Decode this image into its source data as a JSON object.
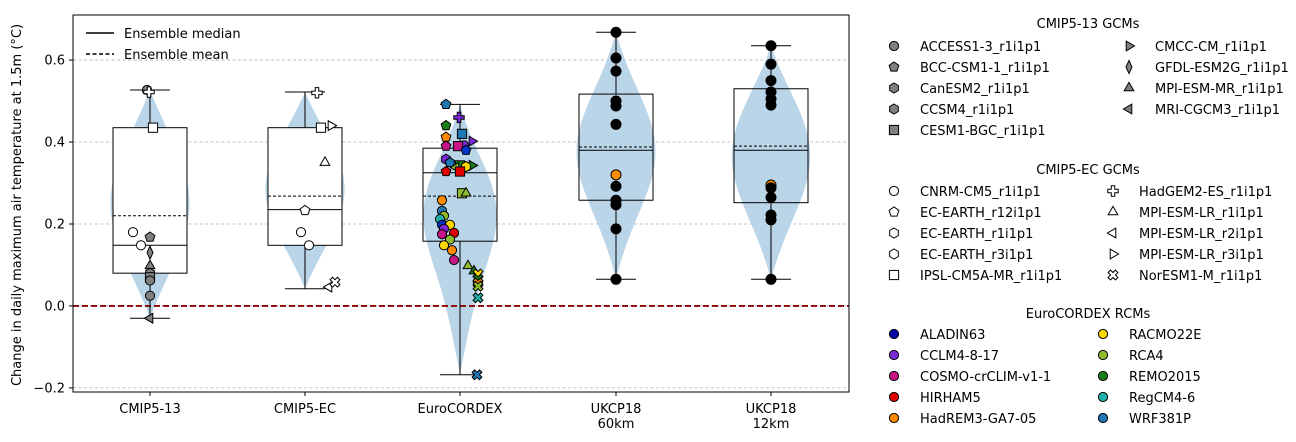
{
  "chart_data": {
    "type": "violin-box-scatter",
    "ylabel": "Change in daily maximum air temperature at 1.5m (°C)",
    "ylim": [
      -0.21,
      0.71
    ],
    "yticks": [
      "−0.2",
      "0.0",
      "0.2",
      "0.4",
      "0.6"
    ],
    "ytick_values": [
      -0.2,
      0.0,
      0.2,
      0.4,
      0.6
    ],
    "grid": "horizontal dashed",
    "zero_line_color": "#8b0000",
    "violin_color": "#bad5e8",
    "categories": [
      "CMIP5-13",
      "CMIP5-EC",
      "EuroCORDEX",
      "UKCP18\n60km",
      "UKCP18\n12km"
    ],
    "stats": [
      {
        "min": -0.03,
        "q1": 0.08,
        "median": 0.148,
        "mean": 0.22,
        "q3": 0.435,
        "max": 0.527
      },
      {
        "min": 0.042,
        "q1": 0.148,
        "median": 0.235,
        "mean": 0.268,
        "q3": 0.435,
        "max": 0.522
      },
      {
        "min": -0.168,
        "q1": 0.158,
        "median": 0.325,
        "mean": 0.268,
        "q3": 0.385,
        "max": 0.492
      },
      {
        "min": 0.065,
        "q1": 0.258,
        "median": 0.38,
        "mean": 0.388,
        "q3": 0.517,
        "max": 0.668
      },
      {
        "min": 0.065,
        "q1": 0.252,
        "median": 0.38,
        "mean": 0.39,
        "q3": 0.53,
        "max": 0.635
      }
    ],
    "series": [
      {
        "group": "CMIP5-13",
        "x": 0,
        "points": [
          {
            "marker": "circle",
            "fill": "#808080",
            "y": 0.527,
            "dx": -3
          },
          {
            "marker": "pentagon",
            "fill": "#808080",
            "y": 0.168,
            "dx": 0
          },
          {
            "marker": "diamond",
            "fill": "#808080",
            "y": 0.13,
            "dx": 0
          },
          {
            "marker": "triangle-up",
            "fill": "#808080",
            "y": 0.098,
            "dx": 0
          },
          {
            "marker": "hexagon",
            "fill": "#808080",
            "y": 0.08,
            "dx": 0
          },
          {
            "marker": "square",
            "fill": "#808080",
            "y": 0.07,
            "dx": 0
          },
          {
            "marker": "circle",
            "fill": "#808080",
            "y": 0.062,
            "dx": 0
          },
          {
            "marker": "circle",
            "fill": "#808080",
            "y": 0.025,
            "dx": 0
          },
          {
            "marker": "triangle-left",
            "fill": "#808080",
            "y": -0.03,
            "dx": 0
          },
          {
            "marker": "circle",
            "fill": "#ffffff",
            "y": 0.18,
            "dx": -17
          },
          {
            "marker": "circle",
            "fill": "#ffffff",
            "y": 0.148,
            "dx": -9
          },
          {
            "marker": "plus",
            "fill": "#ffffff",
            "y": 0.522,
            "dx": -1
          },
          {
            "marker": "square",
            "fill": "#ffffff",
            "y": 0.435,
            "dx": 3
          }
        ]
      },
      {
        "group": "CMIP5-EC",
        "x": 1,
        "points": [
          {
            "marker": "plus",
            "fill": "#ffffff",
            "y": 0.52,
            "dx": 12
          },
          {
            "marker": "square",
            "fill": "#ffffff",
            "y": 0.435,
            "dx": 16
          },
          {
            "marker": "triangle-right",
            "fill": "#ffffff",
            "y": 0.44,
            "dx": 26
          },
          {
            "marker": "triangle-up",
            "fill": "#ffffff",
            "y": 0.35,
            "dx": 20
          },
          {
            "marker": "pentagon",
            "fill": "#ffffff",
            "y": 0.233,
            "dx": 0
          },
          {
            "marker": "circle",
            "fill": "#ffffff",
            "y": 0.18,
            "dx": -4
          },
          {
            "marker": "circle",
            "fill": "#ffffff",
            "y": 0.148,
            "dx": 4
          },
          {
            "marker": "triangle-left",
            "fill": "#ffffff",
            "y": 0.046,
            "dx": 24
          },
          {
            "marker": "cross",
            "fill": "#ffffff",
            "y": 0.058,
            "dx": 30
          }
        ]
      },
      {
        "group": "EuroCORDEX",
        "x": 2,
        "points": [
          {
            "marker": "pentagon",
            "fill": "#1f77b4",
            "y": 0.492,
            "dx": -14
          },
          {
            "marker": "plus",
            "fill": "#7b2ad6",
            "y": 0.46,
            "dx": -1
          },
          {
            "marker": "square",
            "fill": "#1f77b4",
            "y": 0.42,
            "dx": 2
          },
          {
            "marker": "pentagon",
            "fill": "#ff8c00",
            "y": 0.412,
            "dx": -14
          },
          {
            "marker": "triangle-right",
            "fill": "#7b2ad6",
            "y": 0.402,
            "dx": 12
          },
          {
            "marker": "circle",
            "fill": "#7b2ad6",
            "y": 0.392,
            "dx": 4
          },
          {
            "marker": "pentagon",
            "fill": "#c71585",
            "y": 0.39,
            "dx": -14
          },
          {
            "marker": "square",
            "fill": "#c71585",
            "y": 0.39,
            "dx": -2
          },
          {
            "marker": "pentagon",
            "fill": "#0033cc",
            "y": 0.38,
            "dx": 6
          },
          {
            "marker": "pentagon",
            "fill": "#1a7f1a",
            "y": 0.44,
            "dx": -14
          },
          {
            "marker": "hexagon",
            "fill": "#7b2ad6",
            "y": 0.358,
            "dx": -14
          },
          {
            "marker": "pentagon",
            "fill": "#1f77b4",
            "y": 0.35,
            "dx": -10
          },
          {
            "marker": "triangle-right",
            "fill": "#1a7f1a",
            "y": 0.343,
            "dx": 12
          },
          {
            "marker": "square",
            "fill": "#1a7f1a",
            "y": 0.343,
            "dx": 0
          },
          {
            "marker": "triangle-left",
            "fill": "#8fbc2f",
            "y": 0.338,
            "dx": -4
          },
          {
            "marker": "hexagon",
            "fill": "#ffd700",
            "y": 0.34,
            "dx": 6
          },
          {
            "marker": "pentagon",
            "fill": "#e00000",
            "y": 0.328,
            "dx": -14
          },
          {
            "marker": "square",
            "fill": "#e00000",
            "y": 0.328,
            "dx": 0
          },
          {
            "marker": "square",
            "fill": "#8fbc2f",
            "y": 0.275,
            "dx": 2
          },
          {
            "marker": "triangle-up",
            "fill": "#8fbc2f",
            "y": 0.275,
            "dx": 6
          },
          {
            "marker": "circle",
            "fill": "#ff8c00",
            "y": 0.258,
            "dx": -18
          },
          {
            "marker": "circle",
            "fill": "#1f77b4",
            "y": 0.232,
            "dx": -18
          },
          {
            "marker": "circle",
            "fill": "#8fbc2f",
            "y": 0.22,
            "dx": -16
          },
          {
            "marker": "circle",
            "fill": "#20b2aa",
            "y": 0.212,
            "dx": -20
          },
          {
            "marker": "circle",
            "fill": "#0033cc",
            "y": 0.198,
            "dx": -18
          },
          {
            "marker": "circle",
            "fill": "#ffd700",
            "y": 0.198,
            "dx": -10
          },
          {
            "marker": "circle",
            "fill": "#7b2ad6",
            "y": 0.188,
            "dx": -16
          },
          {
            "marker": "circle",
            "fill": "#e00000",
            "y": 0.178,
            "dx": -6
          },
          {
            "marker": "circle",
            "fill": "#c71585",
            "y": 0.175,
            "dx": -18
          },
          {
            "marker": "circle",
            "fill": "#8fbc2f",
            "y": 0.162,
            "dx": -10
          },
          {
            "marker": "circle",
            "fill": "#ffd700",
            "y": 0.148,
            "dx": -16
          },
          {
            "marker": "circle",
            "fill": "#ff8c00",
            "y": 0.136,
            "dx": -8
          },
          {
            "marker": "circle",
            "fill": "#c71585",
            "y": 0.112,
            "dx": -6
          },
          {
            "marker": "triangle-up",
            "fill": "#8fbc2f",
            "y": 0.098,
            "dx": 8
          },
          {
            "marker": "triangle-up",
            "fill": "#1a7f1a",
            "y": 0.085,
            "dx": 14
          },
          {
            "marker": "cross",
            "fill": "#ffd700",
            "y": 0.078,
            "dx": 18
          },
          {
            "marker": "cross",
            "fill": "#1a7f1a",
            "y": 0.065,
            "dx": 18
          },
          {
            "marker": "cross",
            "fill": "#ff8c00",
            "y": 0.056,
            "dx": 18
          },
          {
            "marker": "cross",
            "fill": "#8fbc2f",
            "y": 0.048,
            "dx": 18
          },
          {
            "marker": "cross",
            "fill": "#20b2aa",
            "y": 0.02,
            "dx": 18
          },
          {
            "marker": "cross",
            "fill": "#1f77b4",
            "y": -0.168,
            "dx": 17
          }
        ]
      },
      {
        "group": "UKCP18 60km",
        "x": 3,
        "points": [
          {
            "marker": "circle",
            "fill": "#000000",
            "y": 0.668,
            "dx": 0
          },
          {
            "marker": "circle",
            "fill": "#000000",
            "y": 0.605,
            "dx": 0
          },
          {
            "marker": "circle",
            "fill": "#000000",
            "y": 0.573,
            "dx": 0
          },
          {
            "marker": "circle",
            "fill": "#000000",
            "y": 0.5,
            "dx": 0
          },
          {
            "marker": "circle",
            "fill": "#000000",
            "y": 0.488,
            "dx": 0
          },
          {
            "marker": "circle",
            "fill": "#000000",
            "y": 0.443,
            "dx": 0
          },
          {
            "marker": "circle",
            "fill": "#ff8c00",
            "y": 0.32,
            "dx": 0
          },
          {
            "marker": "circle",
            "fill": "#000000",
            "y": 0.292,
            "dx": 0
          },
          {
            "marker": "circle",
            "fill": "#000000",
            "y": 0.258,
            "dx": 0
          },
          {
            "marker": "circle",
            "fill": "#000000",
            "y": 0.247,
            "dx": 0
          },
          {
            "marker": "circle",
            "fill": "#000000",
            "y": 0.188,
            "dx": 0
          },
          {
            "marker": "circle",
            "fill": "#000000",
            "y": 0.065,
            "dx": 0
          }
        ]
      },
      {
        "group": "UKCP18 12km",
        "x": 4,
        "points": [
          {
            "marker": "circle",
            "fill": "#000000",
            "y": 0.635,
            "dx": 0
          },
          {
            "marker": "circle",
            "fill": "#000000",
            "y": 0.59,
            "dx": 0
          },
          {
            "marker": "circle",
            "fill": "#000000",
            "y": 0.55,
            "dx": 0
          },
          {
            "marker": "circle",
            "fill": "#000000",
            "y": 0.522,
            "dx": 0
          },
          {
            "marker": "circle",
            "fill": "#000000",
            "y": 0.505,
            "dx": 0
          },
          {
            "marker": "circle",
            "fill": "#000000",
            "y": 0.49,
            "dx": 0
          },
          {
            "marker": "circle",
            "fill": "#ff8c00",
            "y": 0.295,
            "dx": 0
          },
          {
            "marker": "circle",
            "fill": "#000000",
            "y": 0.288,
            "dx": 0
          },
          {
            "marker": "circle",
            "fill": "#000000",
            "y": 0.265,
            "dx": 0
          },
          {
            "marker": "circle",
            "fill": "#000000",
            "y": 0.222,
            "dx": 0
          },
          {
            "marker": "circle",
            "fill": "#000000",
            "y": 0.21,
            "dx": 0
          },
          {
            "marker": "circle",
            "fill": "#000000",
            "y": 0.065,
            "dx": 0
          }
        ]
      }
    ],
    "inner_legend": [
      {
        "label": "Ensemble median",
        "style": "solid"
      },
      {
        "label": "Ensemble mean",
        "style": "dashed"
      }
    ],
    "legends": [
      {
        "title": "CMIP5-13 GCMs",
        "items": [
          {
            "label": "ACCESS1-3_r1i1p1",
            "marker": "circle",
            "fill": "#808080"
          },
          {
            "label": "BCC-CSM1-1_r1i1p1",
            "marker": "pentagon",
            "fill": "#808080"
          },
          {
            "label": "CanESM2_r1i1p1",
            "marker": "hexagon",
            "fill": "#808080"
          },
          {
            "label": "CCSM4_r1i1p1",
            "marker": "hexagon",
            "fill": "#808080"
          },
          {
            "label": "CESM1-BGC_r1i1p1",
            "marker": "square",
            "fill": "#808080"
          },
          {
            "label": "CMCC-CM_r1i1p1",
            "marker": "triangle-right",
            "fill": "#808080"
          },
          {
            "label": "GFDL-ESM2G_r1i1p1",
            "marker": "diamond",
            "fill": "#808080"
          },
          {
            "label": "MPI-ESM-MR_r1i1p1",
            "marker": "triangle-up",
            "fill": "#808080"
          },
          {
            "label": "MRI-CGCM3_r1i1p1",
            "marker": "triangle-left",
            "fill": "#808080"
          }
        ]
      },
      {
        "title": "CMIP5-EC GCMs",
        "items": [
          {
            "label": "CNRM-CM5_r1i1p1",
            "marker": "circle",
            "fill": "#ffffff"
          },
          {
            "label": "EC-EARTH_r12i1p1",
            "marker": "pentagon",
            "fill": "#ffffff"
          },
          {
            "label": "EC-EARTH_r1i1p1",
            "marker": "hexagon",
            "fill": "#ffffff"
          },
          {
            "label": "EC-EARTH_r3i1p1",
            "marker": "hexagon",
            "fill": "#ffffff"
          },
          {
            "label": "IPSL-CM5A-MR_r1i1p1",
            "marker": "square",
            "fill": "#ffffff"
          },
          {
            "label": "HadGEM2-ES_r1i1p1",
            "marker": "plus",
            "fill": "#ffffff"
          },
          {
            "label": "MPI-ESM-LR_r1i1p1",
            "marker": "triangle-up",
            "fill": "#ffffff"
          },
          {
            "label": "MPI-ESM-LR_r2i1p1",
            "marker": "triangle-left",
            "fill": "#ffffff"
          },
          {
            "label": "MPI-ESM-LR_r3i1p1",
            "marker": "triangle-right",
            "fill": "#ffffff"
          },
          {
            "label": "NorESM1-M_r1i1p1",
            "marker": "cross",
            "fill": "#ffffff"
          }
        ]
      },
      {
        "title": "EuroCORDEX RCMs",
        "items": [
          {
            "label": "ALADIN63",
            "marker": "circle",
            "fill": "#0000a8"
          },
          {
            "label": "CCLM4-8-17",
            "marker": "circle",
            "fill": "#7b2ad6"
          },
          {
            "label": "COSMO-crCLIM-v1-1",
            "marker": "circle",
            "fill": "#c71585"
          },
          {
            "label": "HIRHAM5",
            "marker": "circle",
            "fill": "#e00000"
          },
          {
            "label": "HadREM3-GA7-05",
            "marker": "circle",
            "fill": "#ff8c00"
          },
          {
            "label": "RACMO22E",
            "marker": "circle",
            "fill": "#ffd700"
          },
          {
            "label": "RCA4",
            "marker": "circle",
            "fill": "#8fbc2f"
          },
          {
            "label": "REMO2015",
            "marker": "circle",
            "fill": "#1a7f1a"
          },
          {
            "label": "RegCM4-6",
            "marker": "circle",
            "fill": "#20b2aa"
          },
          {
            "label": "WRF381P",
            "marker": "circle",
            "fill": "#1f77b4"
          }
        ]
      }
    ]
  }
}
